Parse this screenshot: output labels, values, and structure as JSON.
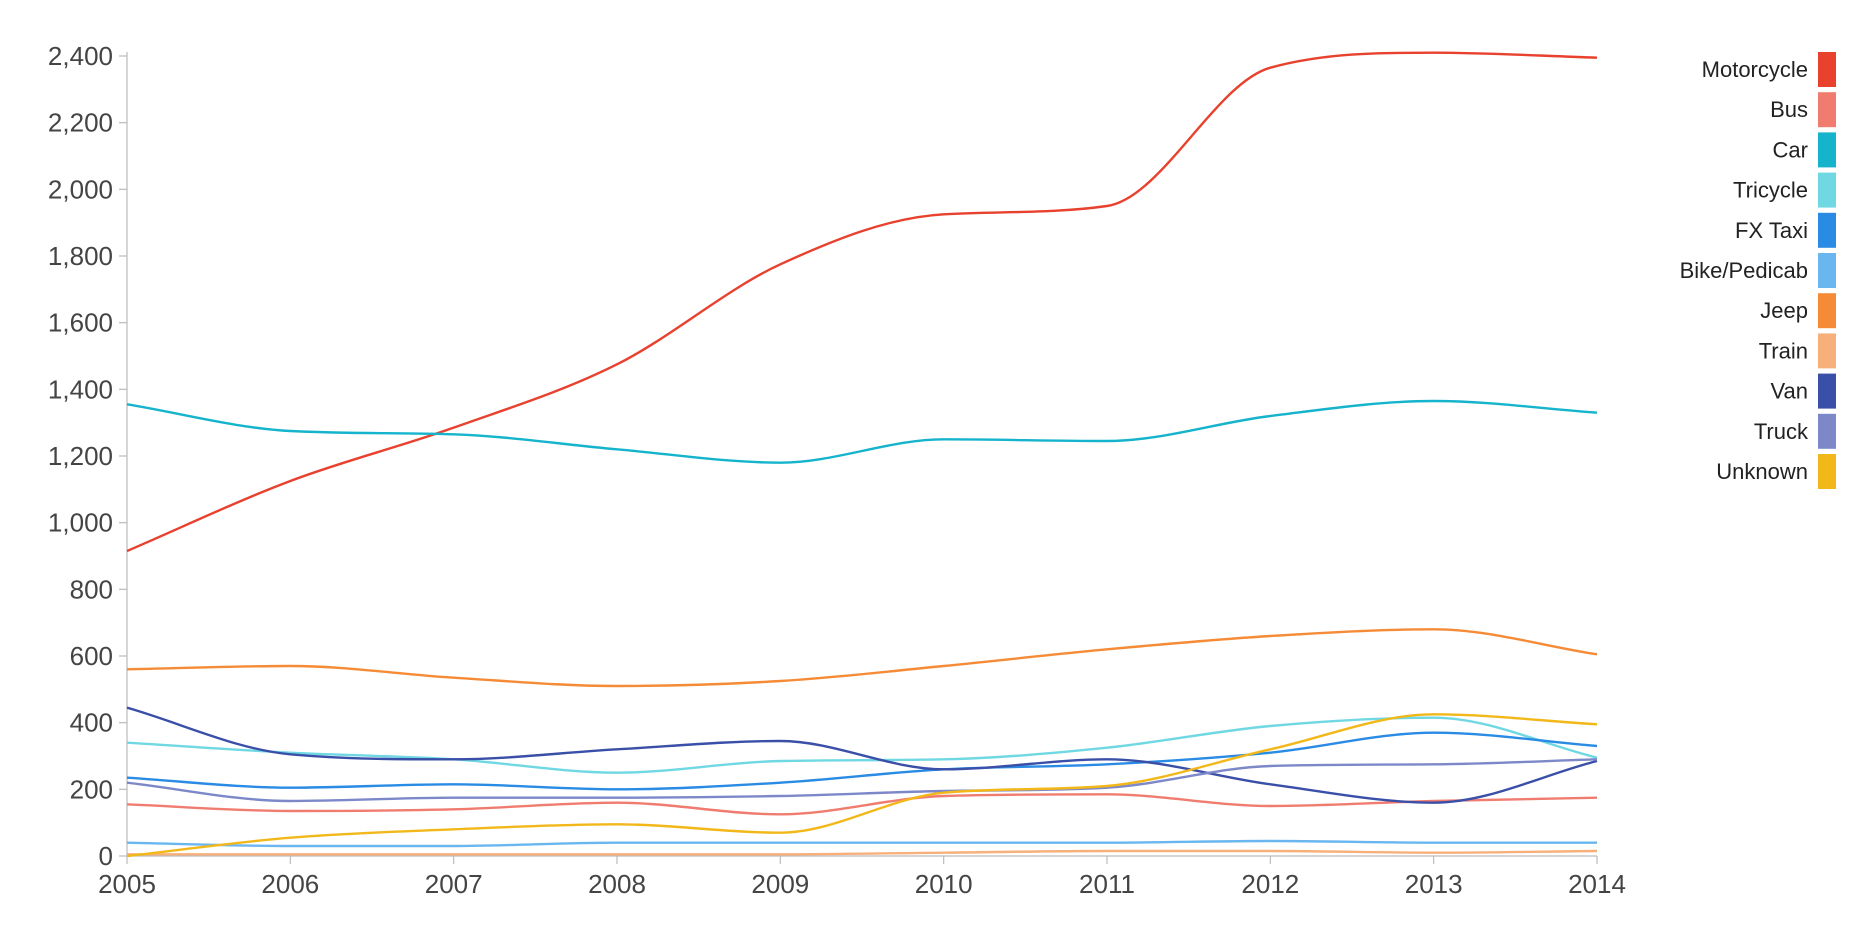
{
  "chart_data": {
    "type": "line",
    "title": "",
    "xlabel": "",
    "ylabel": "",
    "x": [
      2005,
      2006,
      2007,
      2008,
      2009,
      2010,
      2011,
      2012,
      2013,
      2014
    ],
    "x_tick_labels": [
      "2005",
      "2006",
      "2007",
      "2008",
      "2009",
      "2010",
      "2011",
      "2012",
      "2013",
      "2014"
    ],
    "ylim": [
      0,
      2400
    ],
    "y_ticks": [
      0,
      200,
      400,
      600,
      800,
      1000,
      1200,
      1400,
      1600,
      1800,
      2000,
      2200,
      2400
    ],
    "y_tick_labels": [
      "0",
      "200",
      "400",
      "600",
      "800",
      "1,000",
      "1,200",
      "1,400",
      "1,600",
      "1,800",
      "2,000",
      "2,200",
      "2,400"
    ],
    "grid": false,
    "legend_position": "top-right",
    "series": [
      {
        "name": "Motorcycle",
        "color": "#e8412e",
        "values": [
          915,
          1125,
          1285,
          1475,
          1775,
          1925,
          1950,
          2365,
          2410,
          2395
        ]
      },
      {
        "name": "Bus",
        "color": "#f07c70",
        "values": [
          155,
          135,
          140,
          160,
          125,
          180,
          185,
          150,
          165,
          175
        ]
      },
      {
        "name": "Car",
        "color": "#15b4cc",
        "values": [
          1355,
          1275,
          1265,
          1220,
          1180,
          1250,
          1245,
          1320,
          1365,
          1330
        ]
      },
      {
        "name": "Tricycle",
        "color": "#6fd8e2",
        "values": [
          340,
          310,
          290,
          250,
          285,
          290,
          325,
          390,
          415,
          295
        ]
      },
      {
        "name": "FX Taxi",
        "color": "#2a8be4",
        "values": [
          235,
          205,
          215,
          200,
          220,
          260,
          275,
          310,
          370,
          330
        ]
      },
      {
        "name": "Bike/Pedicab",
        "color": "#6ab7f0",
        "values": [
          40,
          30,
          30,
          40,
          40,
          40,
          40,
          45,
          40,
          40
        ]
      },
      {
        "name": "Jeep",
        "color": "#f58b36",
        "values": [
          560,
          570,
          535,
          510,
          525,
          570,
          620,
          660,
          680,
          605
        ]
      },
      {
        "name": "Train",
        "color": "#f7b07a",
        "values": [
          5,
          5,
          5,
          5,
          5,
          10,
          15,
          15,
          10,
          15
        ]
      },
      {
        "name": "Van",
        "color": "#3a4fa8",
        "values": [
          445,
          305,
          290,
          320,
          345,
          260,
          290,
          215,
          160,
          285
        ]
      },
      {
        "name": "Truck",
        "color": "#7d88c9",
        "values": [
          220,
          165,
          175,
          175,
          180,
          195,
          205,
          270,
          275,
          290
        ]
      },
      {
        "name": "Unknown",
        "color": "#f2b81a",
        "values": [
          0,
          55,
          80,
          95,
          70,
          190,
          210,
          320,
          425,
          395
        ]
      }
    ]
  }
}
